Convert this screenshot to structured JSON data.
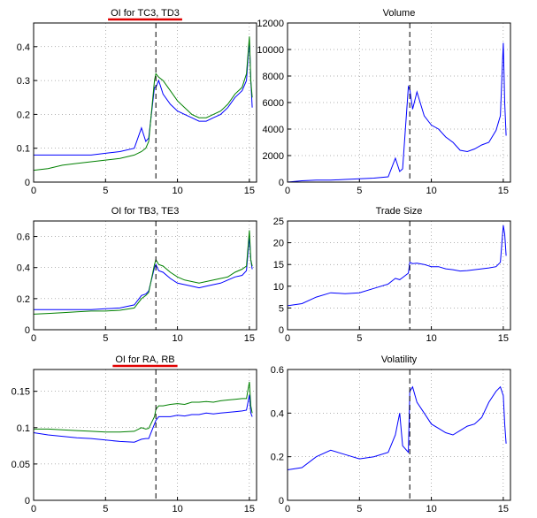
{
  "chart_data": [
    {
      "type": "line",
      "title": "OI for TC3, TD3",
      "title_underline": "#e00000",
      "x": [
        0,
        1,
        2,
        3,
        4,
        5,
        6,
        7,
        7.5,
        7.8,
        8,
        8.4,
        8.5,
        8.7,
        9,
        9.5,
        10,
        10.5,
        11,
        11.5,
        12,
        12.5,
        13,
        13.5,
        14,
        14.5,
        14.8,
        15,
        15.1,
        15.2
      ],
      "series": [
        {
          "name": "TC3",
          "color": "#0000ff",
          "values": [
            0.08,
            0.08,
            0.08,
            0.08,
            0.08,
            0.085,
            0.09,
            0.1,
            0.16,
            0.12,
            0.13,
            0.28,
            0.28,
            0.3,
            0.26,
            0.23,
            0.21,
            0.2,
            0.19,
            0.18,
            0.18,
            0.19,
            0.2,
            0.22,
            0.25,
            0.27,
            0.3,
            0.42,
            0.3,
            0.22
          ]
        },
        {
          "name": "TD3",
          "color": "#008000",
          "values": [
            0.035,
            0.04,
            0.05,
            0.055,
            0.06,
            0.065,
            0.07,
            0.08,
            0.09,
            0.1,
            0.12,
            0.3,
            0.32,
            0.31,
            0.3,
            0.27,
            0.24,
            0.22,
            0.2,
            0.19,
            0.19,
            0.2,
            0.21,
            0.23,
            0.26,
            0.28,
            0.32,
            0.43,
            0.3,
            0.25
          ]
        }
      ],
      "xlim": [
        0,
        15.5
      ],
      "xticks": [
        0,
        5,
        10,
        15
      ],
      "ylim": [
        0,
        0.47
      ],
      "yticks": [
        0,
        0.1,
        0.2,
        0.3,
        0.4
      ],
      "grid": true,
      "vline": 8.5
    },
    {
      "type": "line",
      "title": "Volume",
      "x": [
        0,
        1,
        2,
        3,
        4,
        5,
        6,
        7,
        7.5,
        7.8,
        8,
        8.4,
        8.5,
        8.7,
        9,
        9.5,
        10,
        10.5,
        11,
        11.5,
        12,
        12.5,
        13,
        13.5,
        14,
        14.5,
        14.8,
        15,
        15.1,
        15.2
      ],
      "series": [
        {
          "name": "Volume",
          "color": "#0000ff",
          "values": [
            0,
            100,
            150,
            150,
            200,
            250,
            300,
            400,
            1800,
            800,
            1000,
            7200,
            7000,
            5500,
            6800,
            5000,
            4300,
            4000,
            3400,
            3000,
            2400,
            2300,
            2500,
            2800,
            3000,
            3900,
            5000,
            10500,
            6000,
            3500
          ]
        }
      ],
      "xlim": [
        0,
        15.5
      ],
      "xticks": [
        0,
        5,
        10,
        15
      ],
      "ylim": [
        0,
        12000
      ],
      "yticks": [
        0,
        2000,
        4000,
        6000,
        8000,
        10000,
        12000
      ],
      "grid": true,
      "vline": 8.5
    },
    {
      "type": "line",
      "title": "OI for TB3, TE3",
      "x": [
        0,
        1,
        2,
        3,
        4,
        5,
        6,
        7,
        7.5,
        7.8,
        8,
        8.4,
        8.5,
        8.7,
        9,
        9.5,
        10,
        10.5,
        11,
        11.5,
        12,
        12.5,
        13,
        13.5,
        14,
        14.5,
        14.8,
        15,
        15.1,
        15.2
      ],
      "series": [
        {
          "name": "TB3",
          "color": "#0000ff",
          "values": [
            0.13,
            0.13,
            0.13,
            0.13,
            0.13,
            0.135,
            0.14,
            0.16,
            0.22,
            0.23,
            0.25,
            0.4,
            0.42,
            0.38,
            0.37,
            0.33,
            0.3,
            0.29,
            0.28,
            0.27,
            0.28,
            0.29,
            0.3,
            0.32,
            0.34,
            0.35,
            0.38,
            0.6,
            0.45,
            0.39
          ]
        },
        {
          "name": "TE3",
          "color": "#008000",
          "values": [
            0.1,
            0.105,
            0.11,
            0.115,
            0.12,
            0.12,
            0.125,
            0.14,
            0.2,
            0.22,
            0.24,
            0.42,
            0.45,
            0.42,
            0.41,
            0.37,
            0.34,
            0.32,
            0.31,
            0.3,
            0.31,
            0.32,
            0.33,
            0.34,
            0.37,
            0.39,
            0.41,
            0.64,
            0.45,
            0.41
          ]
        }
      ],
      "xlim": [
        0,
        15.5
      ],
      "xticks": [
        0,
        5,
        10,
        15
      ],
      "ylim": [
        0,
        0.7
      ],
      "yticks": [
        0,
        0.2,
        0.4,
        0.6
      ],
      "grid": true,
      "vline": 8.5
    },
    {
      "type": "line",
      "title": "Trade Size",
      "x": [
        0,
        1,
        2,
        3,
        4,
        5,
        6,
        7,
        7.5,
        7.8,
        8,
        8.4,
        8.5,
        8.7,
        9,
        9.5,
        10,
        10.5,
        11,
        11.5,
        12,
        12.5,
        13,
        13.5,
        14,
        14.5,
        14.8,
        15,
        15.1,
        15.2
      ],
      "series": [
        {
          "name": "Trade Size",
          "color": "#0000ff",
          "values": [
            5.5,
            6,
            7.5,
            8.5,
            8.3,
            8.5,
            9.5,
            10.5,
            11.8,
            11.5,
            12,
            13,
            15.5,
            15.2,
            15.3,
            15,
            14.5,
            14.5,
            14,
            13.8,
            13.5,
            13.6,
            13.8,
            14,
            14.2,
            14.5,
            15.5,
            24,
            22,
            17
          ]
        }
      ],
      "xlim": [
        0,
        15.5
      ],
      "xticks": [
        0,
        5,
        10,
        15
      ],
      "ylim": [
        0,
        25
      ],
      "yticks": [
        0,
        5,
        10,
        15,
        20,
        25
      ],
      "grid": true,
      "vline": 8.5
    },
    {
      "type": "line",
      "title": "OI for RA, RB",
      "title_underline": "#e00000",
      "x": [
        0,
        1,
        2,
        3,
        4,
        5,
        6,
        7,
        7.5,
        7.8,
        8,
        8.4,
        8.5,
        8.7,
        9,
        9.5,
        10,
        10.5,
        11,
        11.5,
        12,
        12.5,
        13,
        13.5,
        14,
        14.5,
        14.8,
        15,
        15.1,
        15.2
      ],
      "series": [
        {
          "name": "RA",
          "color": "#0000ff",
          "values": [
            0.093,
            0.09,
            0.088,
            0.086,
            0.085,
            0.083,
            0.081,
            0.08,
            0.084,
            0.085,
            0.085,
            0.105,
            0.11,
            0.115,
            0.115,
            0.115,
            0.117,
            0.116,
            0.118,
            0.118,
            0.12,
            0.119,
            0.12,
            0.121,
            0.122,
            0.123,
            0.124,
            0.145,
            0.12,
            0.115
          ]
        },
        {
          "name": "RB",
          "color": "#008000",
          "values": [
            0.098,
            0.098,
            0.097,
            0.096,
            0.095,
            0.094,
            0.094,
            0.095,
            0.1,
            0.098,
            0.099,
            0.115,
            0.125,
            0.13,
            0.13,
            0.132,
            0.133,
            0.132,
            0.135,
            0.135,
            0.136,
            0.135,
            0.137,
            0.138,
            0.139,
            0.14,
            0.14,
            0.163,
            0.13,
            0.12
          ]
        }
      ],
      "xlim": [
        0,
        15.5
      ],
      "xticks": [
        0,
        5,
        10,
        15
      ],
      "ylim": [
        0,
        0.18
      ],
      "yticks": [
        0,
        0.05,
        0.1,
        0.15
      ],
      "grid": true,
      "vline": 8.5
    },
    {
      "type": "line",
      "title": "Volatility",
      "x": [
        0,
        1,
        2,
        3,
        4,
        5,
        6,
        7,
        7.5,
        7.8,
        8,
        8.4,
        8.5,
        8.7,
        9,
        9.5,
        10,
        10.5,
        11,
        11.5,
        12,
        12.5,
        13,
        13.5,
        14,
        14.5,
        14.8,
        15,
        15.1,
        15.2
      ],
      "series": [
        {
          "name": "Volatility",
          "color": "#0000ff",
          "values": [
            0.14,
            0.15,
            0.2,
            0.23,
            0.21,
            0.19,
            0.2,
            0.22,
            0.3,
            0.4,
            0.25,
            0.22,
            0.5,
            0.52,
            0.45,
            0.4,
            0.35,
            0.33,
            0.31,
            0.3,
            0.32,
            0.34,
            0.35,
            0.38,
            0.45,
            0.5,
            0.52,
            0.48,
            0.35,
            0.26
          ]
        }
      ],
      "xlim": [
        0,
        15.5
      ],
      "xticks": [
        0,
        5,
        10,
        15
      ],
      "ylim": [
        0,
        0.6
      ],
      "yticks": [
        0,
        0.2,
        0.4,
        0.6
      ],
      "grid": true,
      "vline": 8.5
    }
  ]
}
